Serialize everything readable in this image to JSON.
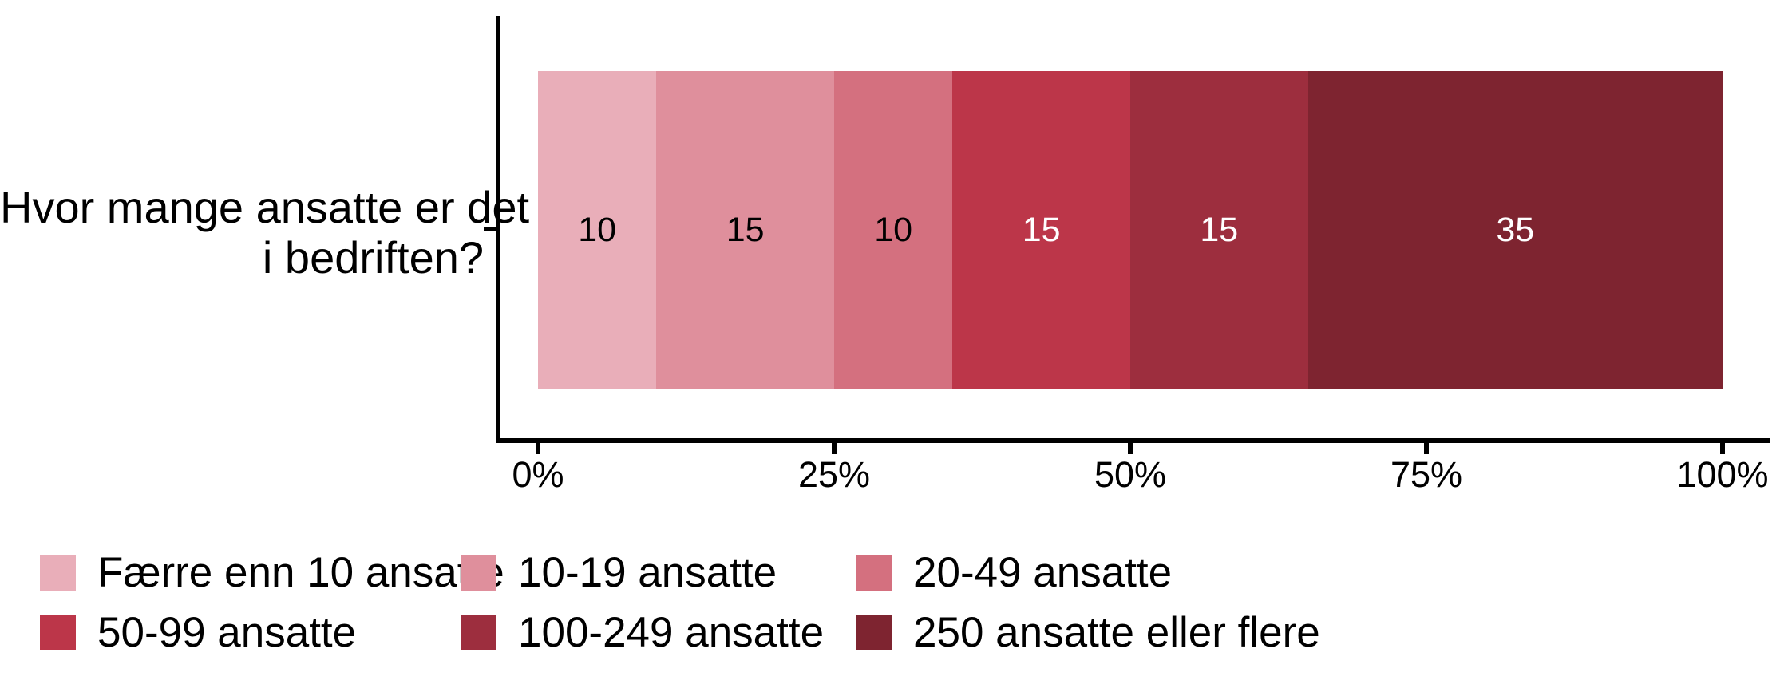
{
  "chart_data": {
    "type": "bar",
    "orientation": "horizontal-stacked",
    "title": "",
    "xlabel": "",
    "ylabel": "Hvor mange ansatte er det i bedriften?",
    "categories": [
      "Hvor mange ansatte er det i bedriften?"
    ],
    "series": [
      {
        "name": "Færre enn 10 ansatte",
        "values": [
          10
        ]
      },
      {
        "name": "10-19 ansatte",
        "values": [
          15
        ]
      },
      {
        "name": "20-49 ansatte",
        "values": [
          10
        ]
      },
      {
        "name": "50-99 ansatte",
        "values": [
          15
        ]
      },
      {
        "name": "100-249 ansatte",
        "values": [
          15
        ]
      },
      {
        "name": "250 ansatte eller flere",
        "values": [
          35
        ]
      }
    ],
    "value_labels": [
      "10",
      "15",
      "10",
      "15",
      "15",
      "35"
    ],
    "value_label_colors": [
      "#000000",
      "#000000",
      "#000000",
      "#ffffff",
      "#ffffff",
      "#ffffff"
    ],
    "colors": [
      "#E9AEB9",
      "#DF8F9C",
      "#D4707F",
      "#BC3649",
      "#9D2E3E",
      "#7E2430"
    ],
    "xlim": [
      0,
      100
    ],
    "x_ticks": [
      {
        "label": "0%",
        "value": 0
      },
      {
        "label": "25%",
        "value": 25
      },
      {
        "label": "50%",
        "value": 50
      },
      {
        "label": "75%",
        "value": 75
      },
      {
        "label": "100%",
        "value": 100
      }
    ],
    "grid": false,
    "legend_position": "bottom"
  },
  "axis_title": {
    "line1": "Hvor mange ansatte er det",
    "line2": "i bedriften?"
  },
  "legend": {
    "items": [
      {
        "label": "Færre enn 10 ansatte",
        "color": "#E9AEB9"
      },
      {
        "label": "10-19 ansatte",
        "color": "#DF8F9C"
      },
      {
        "label": "20-49 ansatte",
        "color": "#D4707F"
      },
      {
        "label": "50-99 ansatte",
        "color": "#BC3649"
      },
      {
        "label": "100-249 ansatte",
        "color": "#9D2E3E"
      },
      {
        "label": "250 ansatte eller flere",
        "color": "#7E2430"
      }
    ]
  }
}
